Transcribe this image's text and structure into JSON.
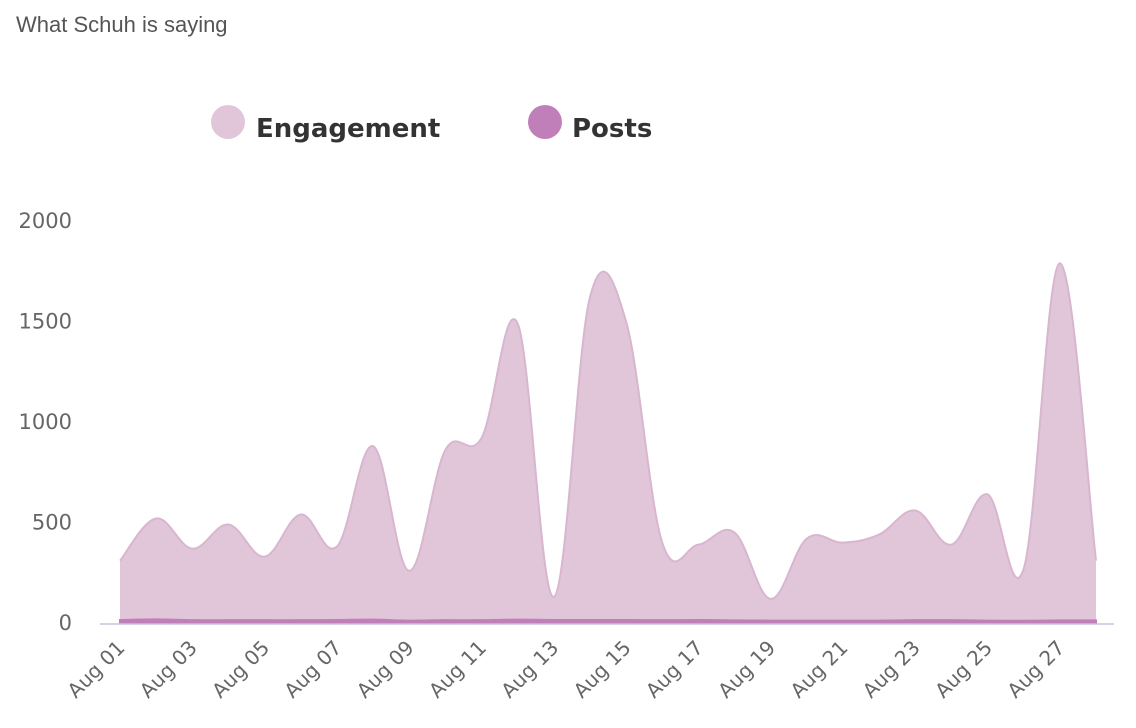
{
  "chart_title": "What Schuh is saying",
  "colors": {
    "engagement_fill": "#e1c6da",
    "engagement_stroke": "#d8b6cf",
    "posts_fill": "#c07fb8",
    "axis": "#c8c0e0",
    "tick_text": "#666666"
  },
  "chart_data": {
    "type": "area",
    "title": "What Schuh is saying",
    "legend_position": "top",
    "ylim": [
      0,
      2000
    ],
    "yticks": [
      "0",
      "500",
      "1000",
      "1500",
      "2000"
    ],
    "x": [
      "Aug 01",
      "Aug 02",
      "Aug 03",
      "Aug 04",
      "Aug 05",
      "Aug 06",
      "Aug 07",
      "Aug 08",
      "Aug 09",
      "Aug 10",
      "Aug 11",
      "Aug 12",
      "Aug 13",
      "Aug 14",
      "Aug 15",
      "Aug 16",
      "Aug 17",
      "Aug 18",
      "Aug 19",
      "Aug 20",
      "Aug 21",
      "Aug 22",
      "Aug 23",
      "Aug 24",
      "Aug 25",
      "Aug 26",
      "Aug 27",
      "Aug 28"
    ],
    "xticks": [
      "Aug 01",
      "Aug 03",
      "Aug 05",
      "Aug 07",
      "Aug 09",
      "Aug 11",
      "Aug 13",
      "Aug 15",
      "Aug 17",
      "Aug 19",
      "Aug 21",
      "Aug 23",
      "Aug 25",
      "Aug 27"
    ],
    "series": [
      {
        "name": "Engagement",
        "values": [
          310,
          520,
          370,
          490,
          330,
          540,
          380,
          880,
          260,
          860,
          920,
          1490,
          130,
          1620,
          1500,
          400,
          390,
          450,
          120,
          420,
          400,
          440,
          560,
          390,
          640,
          270,
          1790,
          310
        ]
      },
      {
        "name": "Posts",
        "values": [
          15,
          18,
          14,
          14,
          14,
          14,
          15,
          17,
          12,
          14,
          14,
          17,
          15,
          15,
          15,
          14,
          15,
          13,
          12,
          12,
          12,
          12,
          14,
          14,
          12,
          11,
          13,
          13
        ]
      }
    ]
  }
}
